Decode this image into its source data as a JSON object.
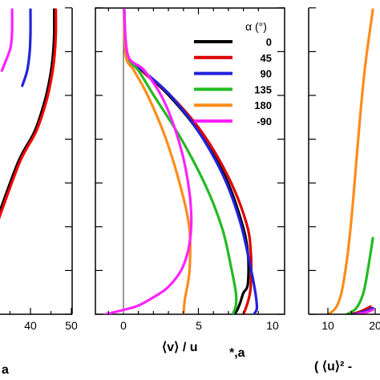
{
  "chart_data": [
    {
      "type": "line",
      "panel": "left",
      "xlim": [
        30,
        50
      ],
      "ticks": [
        40,
        50
      ],
      "tick_labels": [
        "40",
        "50"
      ],
      "xlabel_fragment": "a",
      "series": [
        {
          "color": "#000000",
          "x": [
            45.8,
            45.8,
            45.5,
            44.8,
            43.5,
            41.0,
            37.0,
            31.5
          ],
          "y": [
            1.0,
            0.92,
            0.85,
            0.78,
            0.7,
            0.6,
            0.5,
            0.3
          ]
        },
        {
          "color": "#ff0000",
          "x": [
            46.2,
            46.2,
            45.9,
            45.2,
            43.9,
            41.4,
            37.4,
            31.9
          ],
          "y": [
            1.0,
            0.92,
            0.85,
            0.78,
            0.7,
            0.6,
            0.5,
            0.3
          ]
        },
        {
          "color": "#2222dd",
          "x": [
            40.0,
            40.0,
            39.8,
            39.2,
            38.0
          ],
          "y": [
            1.0,
            0.92,
            0.86,
            0.8,
            0.75
          ]
        },
        {
          "color": "#ff22ff",
          "x": [
            35.5,
            35.5,
            35.2,
            34.5,
            33.0
          ],
          "y": [
            1.0,
            0.93,
            0.88,
            0.85,
            0.8
          ]
        }
      ]
    },
    {
      "type": "line",
      "panel": "middle",
      "xlim": [
        -1.5,
        10.5
      ],
      "ylim": [
        0,
        1
      ],
      "ticks": [
        0,
        5,
        10
      ],
      "tick_labels": [
        "0",
        "5",
        "10"
      ],
      "xlabel": "⟨v⟩ / u",
      "xlabel_sub": "*,a",
      "legend_title": "α (°)",
      "legend_position": "top-right",
      "series": [
        {
          "name": "0",
          "color": "#000000",
          "x": [
            0.05,
            0.2,
            1.2,
            3.0,
            5.0,
            6.8,
            7.9,
            8.3,
            8.3,
            8.0,
            7.8,
            7.6,
            7.4
          ],
          "y": [
            1.0,
            0.85,
            0.8,
            0.72,
            0.6,
            0.45,
            0.3,
            0.2,
            0.1,
            0.07,
            0.04,
            0.015,
            0.0
          ]
        },
        {
          "name": "45",
          "color": "#dd0000",
          "x": [
            0.05,
            0.2,
            1.2,
            3.1,
            5.2,
            7.0,
            8.2,
            8.5,
            8.5,
            8.4,
            8.2,
            8.0
          ],
          "y": [
            1.0,
            0.85,
            0.8,
            0.72,
            0.6,
            0.45,
            0.3,
            0.2,
            0.1,
            0.06,
            0.025,
            0.0
          ]
        },
        {
          "name": "90",
          "color": "#2222dd",
          "x": [
            0.05,
            0.2,
            1.3,
            3.1,
            5.0,
            6.7,
            7.8,
            8.5,
            8.8,
            8.9,
            8.7
          ],
          "y": [
            1.0,
            0.85,
            0.8,
            0.72,
            0.6,
            0.45,
            0.3,
            0.15,
            0.07,
            0.02,
            0.0
          ]
        },
        {
          "name": "135",
          "color": "#22bb22",
          "x": [
            0.05,
            0.2,
            1.0,
            2.0,
            3.8,
            5.5,
            6.6,
            7.2,
            7.5,
            7.5,
            7.3
          ],
          "y": [
            1.0,
            0.85,
            0.8,
            0.72,
            0.58,
            0.42,
            0.28,
            0.15,
            0.07,
            0.03,
            0.0
          ]
        },
        {
          "name": "180",
          "color": "#ff8c1a",
          "x": [
            0.05,
            0.15,
            0.7,
            1.6,
            2.8,
            3.8,
            4.4,
            4.4,
            4.1,
            4.0
          ],
          "y": [
            1.0,
            0.85,
            0.8,
            0.72,
            0.58,
            0.42,
            0.28,
            0.14,
            0.05,
            0.0
          ]
        },
        {
          "name": "-90",
          "color": "#ff22ff",
          "x": [
            0.05,
            0.3,
            1.4,
            2.7,
            3.8,
            4.4,
            4.5,
            4.0,
            3.0,
            1.8,
            0.8,
            -1.2
          ],
          "y": [
            1.0,
            0.85,
            0.8,
            0.7,
            0.55,
            0.4,
            0.27,
            0.16,
            0.09,
            0.05,
            0.025,
            0.0
          ]
        }
      ]
    },
    {
      "type": "line",
      "panel": "right",
      "xlim": [
        7,
        25
      ],
      "ticks": [
        10,
        20
      ],
      "tick_labels": [
        "10",
        "20"
      ],
      "xlabel_fragment": "( ⟨u⟩² -",
      "series": [
        {
          "color": "#ff8c1a",
          "x": [
            10.0,
            11.0,
            12.0,
            13.0,
            14.2,
            15.2,
            16.0,
            17.0,
            18.0,
            19.5
          ],
          "y": [
            0.0,
            0.01,
            0.03,
            0.08,
            0.2,
            0.35,
            0.5,
            0.68,
            0.83,
            1.0
          ]
        },
        {
          "color": "#22bb22",
          "x": [
            14.0,
            16.0,
            17.5,
            18.5,
            19.5
          ],
          "y": [
            0.0,
            0.02,
            0.07,
            0.15,
            0.25
          ]
        },
        {
          "color": "#dd0000",
          "x": [
            15.0,
            17.0,
            19.0
          ],
          "y": [
            0.0,
            0.01,
            0.025
          ]
        },
        {
          "color": "#2222dd",
          "x": [
            15.5,
            17.5,
            19.5
          ],
          "y": [
            0.0,
            0.008,
            0.02
          ]
        },
        {
          "color": "#ff22ff",
          "x": [
            16.0,
            18.0,
            19.5
          ],
          "y": [
            0.0,
            0.006,
            0.015
          ]
        }
      ]
    }
  ]
}
